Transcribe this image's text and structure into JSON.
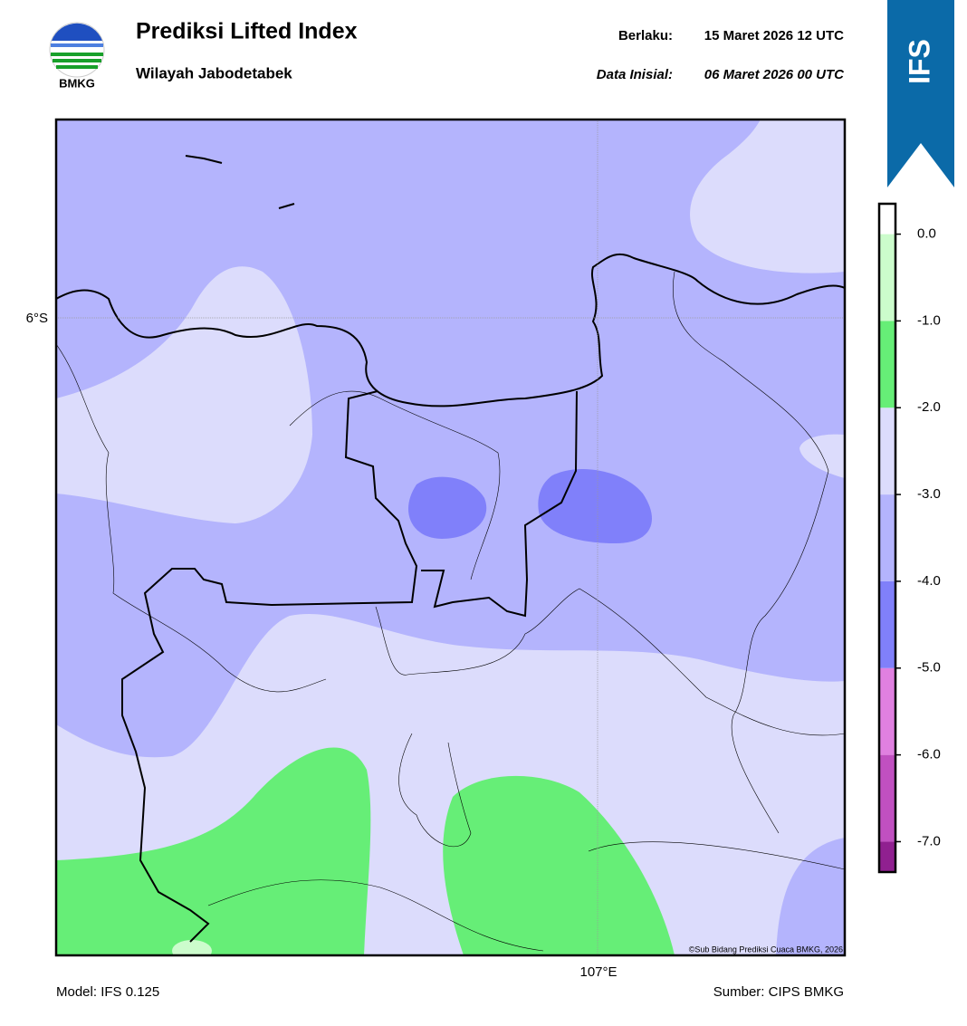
{
  "header": {
    "logo": "BMKG",
    "title": "Prediksi Lifted Index",
    "subtitle": "Wilayah Jabodetabek",
    "valid_label": "Berlaku:",
    "valid": "15 Maret 2026 12 UTC",
    "init_label": "Data Inisial:",
    "init": "06 Maret 2026 00 UTC",
    "badge": "IFS"
  },
  "map": {
    "lat_label": "6°S",
    "lon_label": "107°E",
    "credit": "©Sub Bidang Prediksi Cuaca BMKG, 2026"
  },
  "colorbar": {
    "lim": [
      -7.35,
      0.35
    ],
    "ticks": [
      {
        "value": 0,
        "label": "0.0"
      },
      {
        "value": -1,
        "label": "-1.0"
      },
      {
        "value": -2,
        "label": "-2.0"
      },
      {
        "value": -3,
        "label": "-3.0"
      },
      {
        "value": -4,
        "label": "-4.0"
      },
      {
        "value": -5,
        "label": "-5.0"
      },
      {
        "value": -6,
        "label": "-6.0"
      },
      {
        "value": -7,
        "label": "-7.0"
      }
    ],
    "colors": [
      "#ffffff",
      "#ccfccc",
      "#66ee77",
      "#dcdcfc",
      "#b4b4fd",
      "#8080fa",
      "#e080e0",
      "#c050c0",
      "#902090"
    ]
  },
  "footer": {
    "model": "Model: IFS 0.125",
    "source": "Sumber: CIPS BMKG"
  }
}
